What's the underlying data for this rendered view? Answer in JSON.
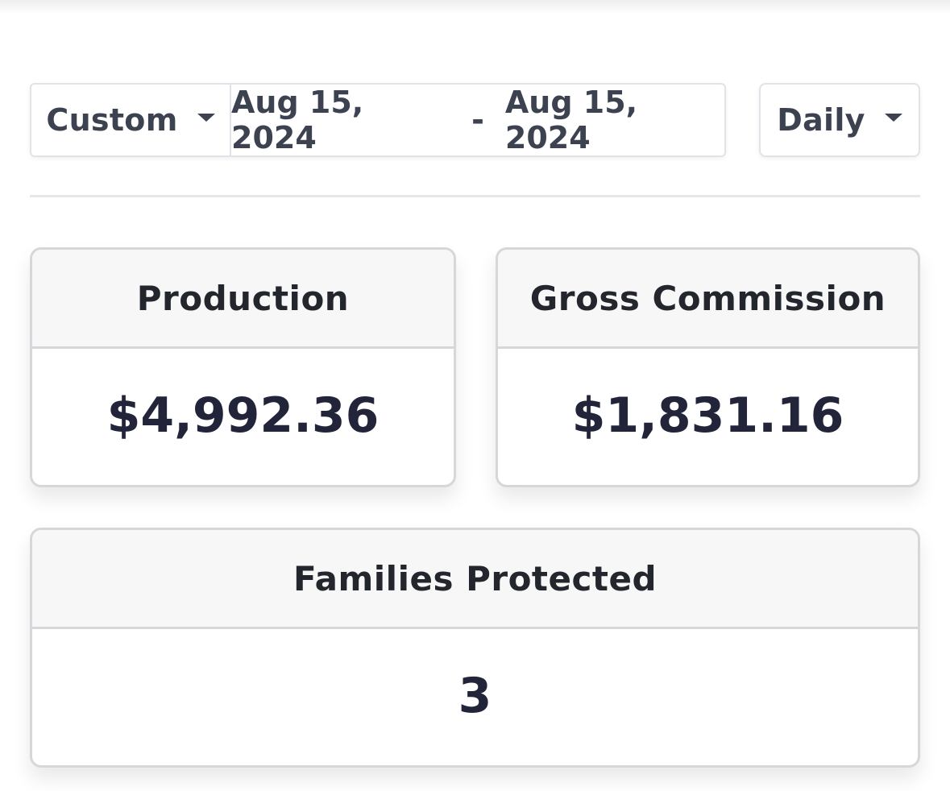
{
  "filters": {
    "preset_label": "Custom",
    "start_date": "Aug 15, 2024",
    "separator": "-",
    "end_date": "Aug 15, 2024",
    "interval_label": "Daily"
  },
  "icons": {
    "preset_caret": "caret-down-icon",
    "interval_caret": "caret-down-icon"
  },
  "cards": {
    "production": {
      "title": "Production",
      "value": "$4,992.36"
    },
    "gross_commission": {
      "title": "Gross Commission",
      "value": "$1,831.16"
    },
    "families_protected": {
      "title": "Families Protected",
      "value": "3"
    }
  },
  "colors": {
    "text": "#3d4251",
    "value_text": "#22253a",
    "card_header_bg": "#f7f7f7",
    "border": "#d6d7da"
  }
}
